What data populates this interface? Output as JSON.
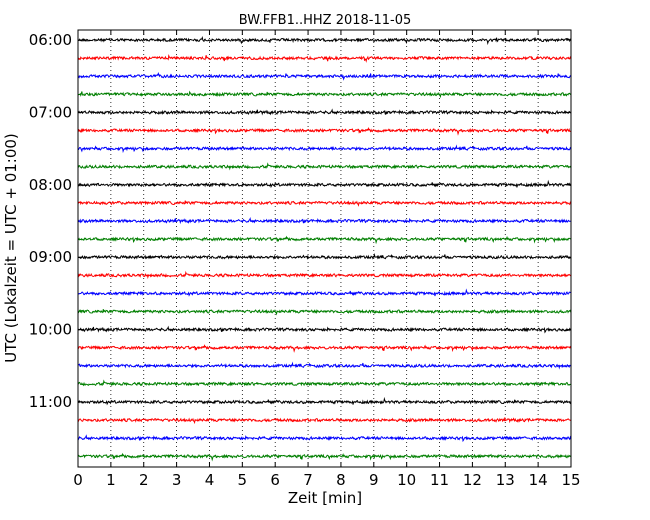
{
  "chart_data": {
    "type": "line",
    "title": "BW.FFB1..HHZ 2018-11-05",
    "xlabel": "Zeit  [min]",
    "ylabel": "UTC (Lokalzeit = UTC + 01:00)",
    "xlim": [
      0,
      15
    ],
    "x_ticks": [
      "0",
      "1",
      "2",
      "3",
      "4",
      "5",
      "6",
      "7",
      "8",
      "9",
      "10",
      "11",
      "12",
      "13",
      "14",
      "15"
    ],
    "y_tick_labels": [
      {
        "label": "06:00",
        "trace_index": 0
      },
      {
        "label": "07:00",
        "trace_index": 4
      },
      {
        "label": "08:00",
        "trace_index": 8
      },
      {
        "label": "09:00",
        "trace_index": 12
      },
      {
        "label": "10:00",
        "trace_index": 16
      },
      {
        "label": "11:00",
        "trace_index": 20
      }
    ],
    "trace_count": 24,
    "trace_interval_minutes": 15,
    "trace_colors": [
      "#000000",
      "#ff0000",
      "#0000ff",
      "#007f00"
    ],
    "grid_x": true,
    "grid_style": "dotted"
  }
}
